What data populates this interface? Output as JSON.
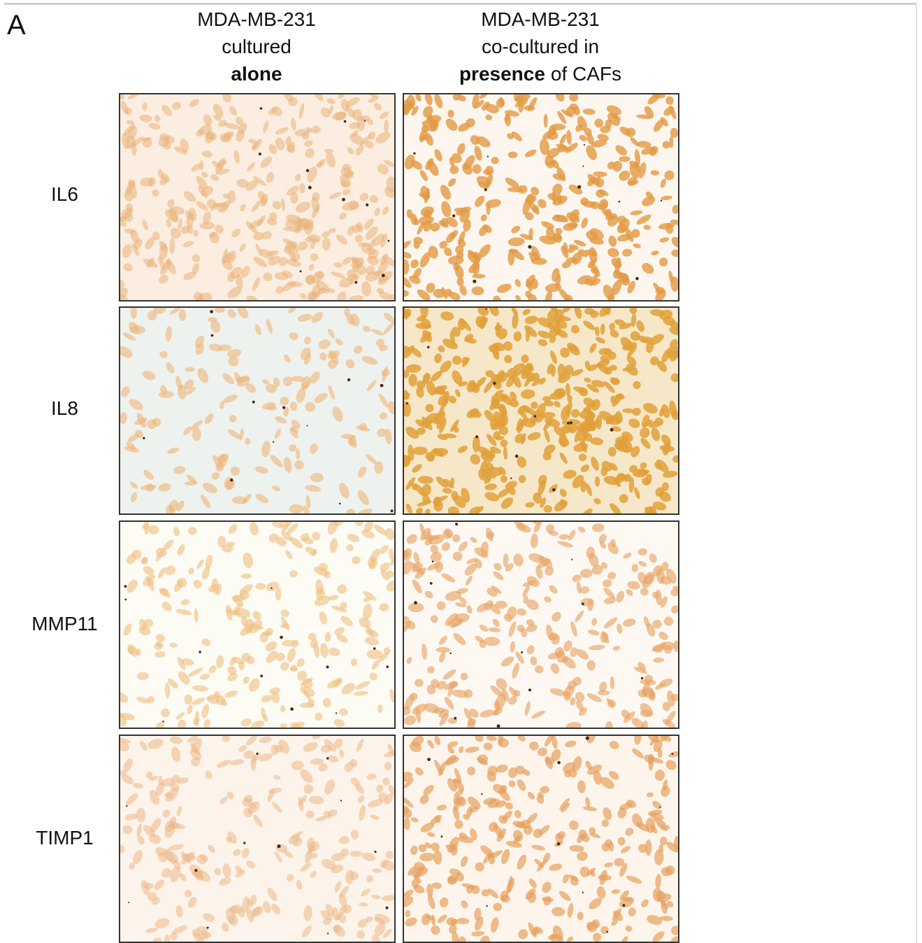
{
  "panel_label": "A",
  "columns": [
    {
      "lines": [
        [
          {
            "text": "MDA-MB-231"
          }
        ],
        [
          {
            "text": "cultured"
          }
        ],
        [
          {
            "text": "alone",
            "bold": true
          }
        ]
      ]
    },
    {
      "lines": [
        [
          {
            "text": "MDA-MB-231"
          }
        ],
        [
          {
            "text": "co-cultured in"
          }
        ],
        [
          {
            "text": "presence",
            "bold": true
          },
          {
            "text": "of CAFs"
          }
        ]
      ]
    }
  ],
  "rows": [
    {
      "label": "IL6"
    },
    {
      "label": "IL8"
    },
    {
      "label": "MMP11"
    },
    {
      "label": "TIMP1"
    }
  ]
}
